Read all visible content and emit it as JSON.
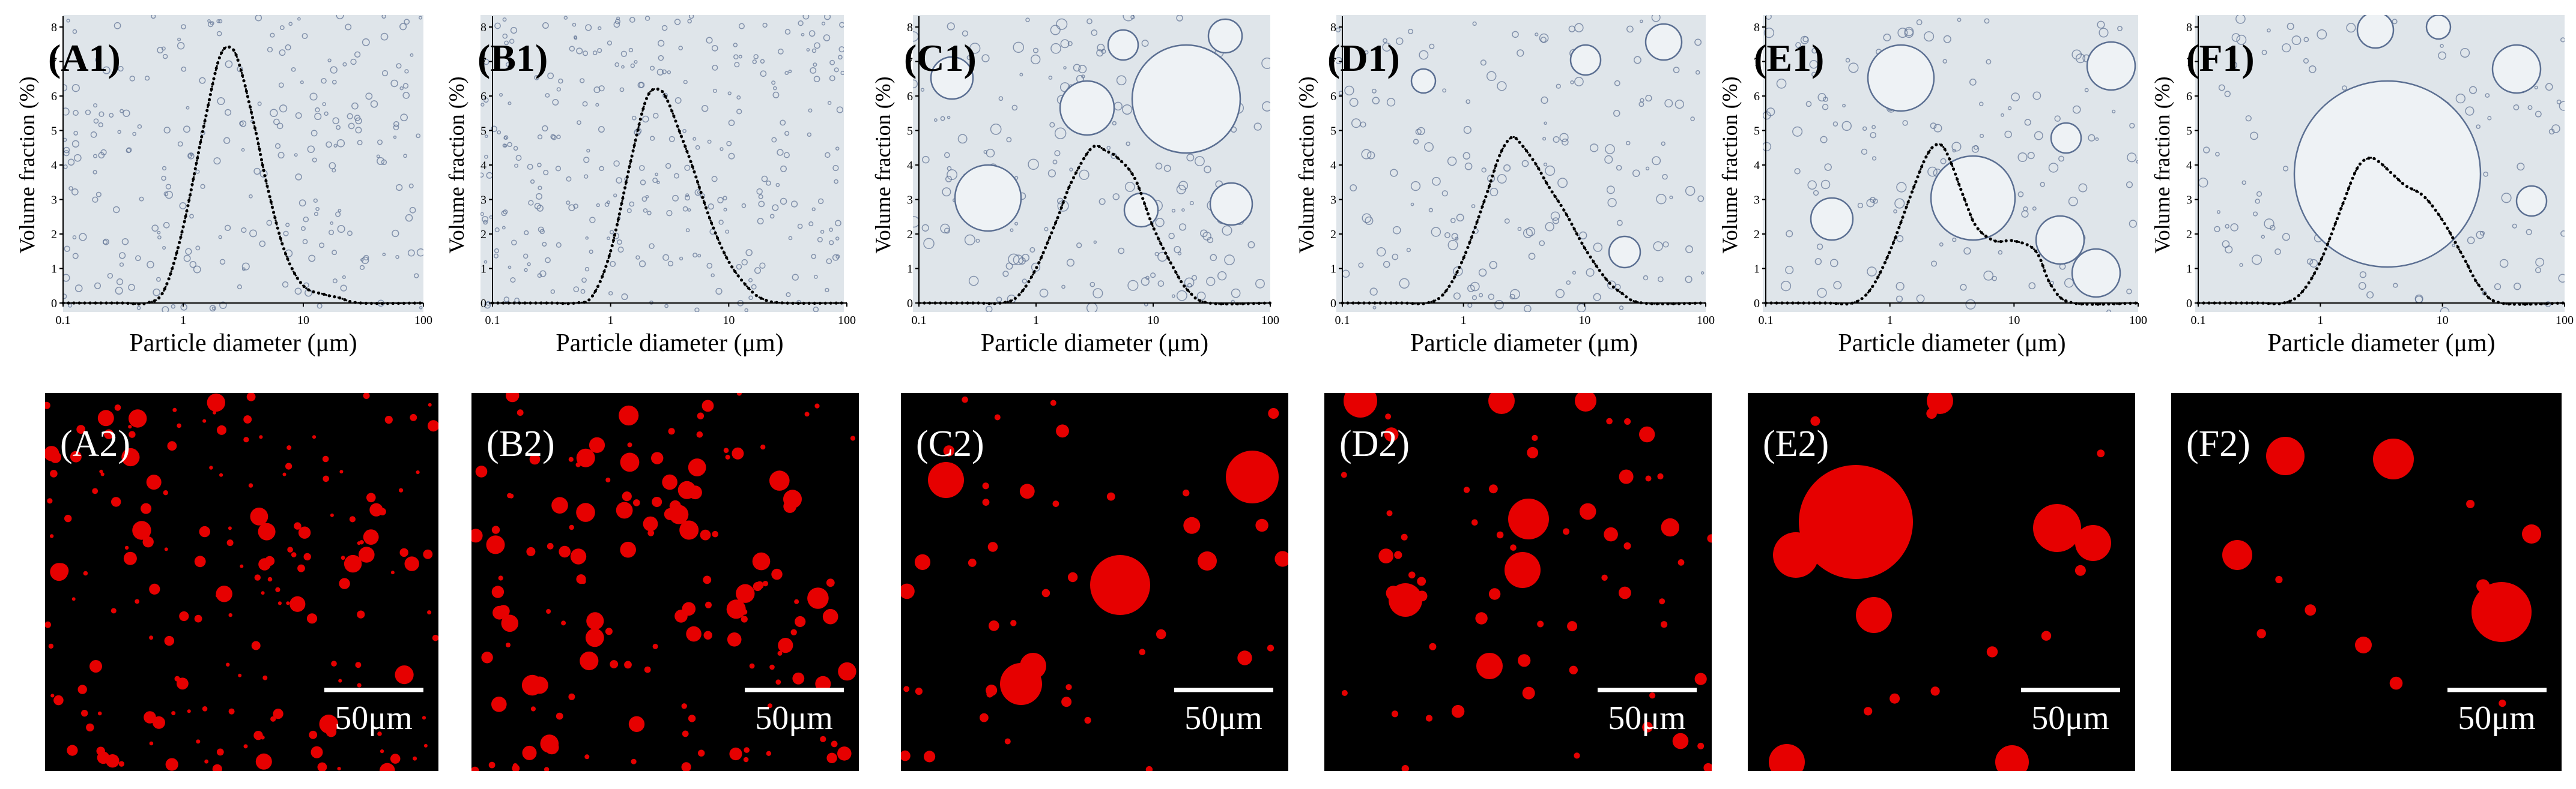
{
  "figure": {
    "panels": [
      {
        "id": "A",
        "top_label": "(A1)",
        "bottom_label": "(A2)",
        "scale_bar": "50μm"
      },
      {
        "id": "B",
        "top_label": "(B1)",
        "bottom_label": "(B2)",
        "scale_bar": "50μm"
      },
      {
        "id": "C",
        "top_label": "(C1)",
        "bottom_label": "(C2)",
        "scale_bar": "50μm"
      },
      {
        "id": "D",
        "top_label": "(D1)",
        "bottom_label": "(D2)",
        "scale_bar": "50μm"
      },
      {
        "id": "E",
        "top_label": "(E1)",
        "bottom_label": "(E2)",
        "scale_bar": "50μm"
      },
      {
        "id": "F",
        "top_label": "(F1)",
        "bottom_label": "(F2)",
        "scale_bar": "50μm"
      }
    ],
    "colors": {
      "micrograph_background": "#dfe5ea",
      "droplet_outline": "#5b6f92",
      "fluorescence_background": "#000000",
      "fluorescence_droplet": "#e60000",
      "curve": "#000000"
    }
  },
  "chart_data": [
    {
      "type": "line",
      "xscale": "log",
      "xlim": [
        0.1,
        100
      ],
      "ylim": [
        0,
        8
      ],
      "xlabel": "Particle diameter (μm)",
      "ylabel": "Volume fraction (%)",
      "xticks": [
        "0.1",
        "1",
        "10",
        "100"
      ],
      "yticks": [
        "0",
        "1",
        "2",
        "3",
        "4",
        "5",
        "6",
        "7",
        "8"
      ],
      "x": [
        0.1,
        0.3,
        0.5,
        0.7,
        1,
        1.5,
        2,
        2.5,
        3,
        4,
        5,
        7,
        10,
        15,
        20,
        30,
        100
      ],
      "y": [
        0,
        0,
        0,
        0.4,
        2.2,
        5.2,
        7.1,
        7.4,
        6.8,
        5,
        3.4,
        1.5,
        0.5,
        0.25,
        0.15,
        0,
        0
      ]
    },
    {
      "type": "line",
      "xscale": "log",
      "xlim": [
        0.1,
        100
      ],
      "ylim": [
        0,
        8
      ],
      "xlabel": "Particle diameter (μm)",
      "ylabel": "Volume fraction (%)",
      "xticks": [
        "0.1",
        "1",
        "10",
        "100"
      ],
      "yticks": [
        "0",
        "1",
        "2",
        "3",
        "4",
        "5",
        "6",
        "7",
        "8"
      ],
      "x": [
        0.1,
        0.3,
        0.5,
        0.7,
        1,
        1.5,
        2,
        2.5,
        3,
        4,
        5,
        7,
        10,
        15,
        20,
        30,
        100
      ],
      "y": [
        0,
        0,
        0,
        0.2,
        1.5,
        4.2,
        5.9,
        6.2,
        5.9,
        4.8,
        3.9,
        2.4,
        1.2,
        0.4,
        0.1,
        0,
        0
      ]
    },
    {
      "type": "line",
      "xscale": "log",
      "xlim": [
        0.1,
        100
      ],
      "ylim": [
        0,
        8
      ],
      "xlabel": "Particle diameter (μm)",
      "ylabel": "Volume fraction (%)",
      "xticks": [
        "0.1",
        "1",
        "10",
        "100"
      ],
      "yticks": [
        "0",
        "1",
        "2",
        "3",
        "4",
        "5",
        "6",
        "7",
        "8"
      ],
      "x": [
        0.1,
        0.3,
        0.5,
        0.7,
        1,
        1.5,
        2,
        3,
        4,
        5,
        7,
        10,
        15,
        20,
        30,
        100
      ],
      "y": [
        0,
        0,
        0,
        0.2,
        1,
        2.4,
        3.5,
        4.5,
        4.4,
        4.2,
        3.6,
        2.2,
        1,
        0.35,
        0,
        0
      ]
    },
    {
      "type": "line",
      "xscale": "log",
      "xlim": [
        0.1,
        100
      ],
      "ylim": [
        0,
        8
      ],
      "xlabel": "Particle diameter (μm)",
      "ylabel": "Volume fraction (%)",
      "xticks": [
        "0.1",
        "1",
        "10",
        "100"
      ],
      "yticks": [
        "0",
        "1",
        "2",
        "3",
        "4",
        "5",
        "6",
        "7",
        "8"
      ],
      "x": [
        0.1,
        0.3,
        0.5,
        0.7,
        1,
        1.5,
        2,
        2.5,
        3,
        4,
        5,
        7,
        10,
        15,
        20,
        30,
        100
      ],
      "y": [
        0,
        0,
        0,
        0.3,
        1.3,
        3,
        4.3,
        4.8,
        4.6,
        4,
        3.4,
        2.6,
        1.6,
        0.7,
        0.3,
        0,
        0
      ]
    },
    {
      "type": "line",
      "xscale": "log",
      "xlim": [
        0.1,
        100
      ],
      "ylim": [
        0,
        8
      ],
      "xlabel": "Particle diameter (μm)",
      "ylabel": "Volume fraction (%)",
      "xticks": [
        "0.1",
        "1",
        "10",
        "100"
      ],
      "yticks": [
        "0",
        "1",
        "2",
        "3",
        "4",
        "5",
        "6",
        "7",
        "8"
      ],
      "x": [
        0.1,
        0.3,
        0.5,
        0.7,
        1,
        1.5,
        2,
        2.5,
        3,
        4,
        5,
        7,
        10,
        15,
        20,
        30,
        100
      ],
      "y": [
        0,
        0,
        0,
        0.4,
        1.5,
        3.2,
        4.3,
        4.6,
        4.2,
        3,
        2.2,
        1.8,
        1.8,
        1.5,
        0.5,
        0,
        0
      ]
    },
    {
      "type": "line",
      "xscale": "log",
      "xlim": [
        0.1,
        100
      ],
      "ylim": [
        0,
        8
      ],
      "xlabel": "Particle diameter (μm)",
      "ylabel": "Volume fraction (%)",
      "xticks": [
        "0.1",
        "1",
        "10",
        "100"
      ],
      "yticks": [
        "0",
        "1",
        "2",
        "3",
        "4",
        "5",
        "6",
        "7",
        "8"
      ],
      "x": [
        0.1,
        0.3,
        0.5,
        0.7,
        1,
        1.5,
        2,
        2.5,
        3,
        4,
        5,
        7,
        10,
        15,
        20,
        30,
        100
      ],
      "y": [
        0,
        0,
        0,
        0.3,
        1.2,
        2.8,
        3.9,
        4.2,
        4.1,
        3.7,
        3.4,
        3.1,
        2.4,
        1.3,
        0.5,
        0,
        0
      ]
    }
  ]
}
